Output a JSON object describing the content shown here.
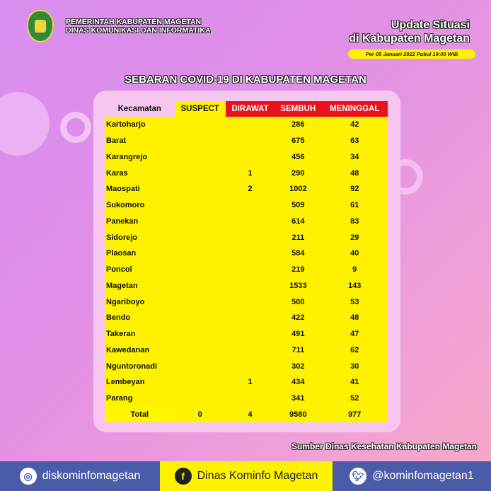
{
  "header": {
    "org_line1": "PEMERINTAH KABUPATEN MAGETAN",
    "org_line2": "DINAS KOMUNIKASI DAN INFORMATIKA",
    "update_line1": "Update Situasi",
    "update_line2": "di Kabupaten Magetan",
    "date": "Per 05 Januari 2022 Pukul 19:00 WIB"
  },
  "title": "SEBARAN COVID-19 DI KABUPATEN MAGETAN",
  "table": {
    "headers": [
      "Kecamatan",
      "SUSPECT",
      "DIRAWAT",
      "SEMBUH",
      "MENINGGAL"
    ],
    "rows": [
      [
        "Kartoharjo",
        "",
        "",
        "286",
        "42"
      ],
      [
        "Barat",
        "",
        "",
        "675",
        "63"
      ],
      [
        "Karangrejo",
        "",
        "",
        "456",
        "34"
      ],
      [
        "Karas",
        "",
        "1",
        "290",
        "48"
      ],
      [
        "Maospati",
        "",
        "2",
        "1002",
        "92"
      ],
      [
        "Sukomoro",
        "",
        "",
        "509",
        "61"
      ],
      [
        "Panekan",
        "",
        "",
        "614",
        "83"
      ],
      [
        "Sidorejo",
        "",
        "",
        "211",
        "29"
      ],
      [
        "Plaosan",
        "",
        "",
        "584",
        "40"
      ],
      [
        "Poncol",
        "",
        "",
        "219",
        "9"
      ],
      [
        "Magetan",
        "",
        "",
        "1533",
        "143"
      ],
      [
        "Ngariboyo",
        "",
        "",
        "500",
        "53"
      ],
      [
        "Bendo",
        "",
        "",
        "422",
        "48"
      ],
      [
        "Takeran",
        "",
        "",
        "491",
        "47"
      ],
      [
        "Kawedanan",
        "",
        "",
        "711",
        "62"
      ],
      [
        "Nguntoronadi",
        "",
        "",
        "302",
        "30"
      ],
      [
        "Lembeyan",
        "",
        "1",
        "434",
        "41"
      ],
      [
        "Parang",
        "",
        "",
        "341",
        "52"
      ]
    ],
    "total": [
      "Total",
      "0",
      "4",
      "9580",
      "977"
    ]
  },
  "source": "Sumber Dinas Kesehatan Kabupaten Magetan",
  "footer": {
    "instagram": "diskominfomagetan",
    "facebook": "Dinas Kominfo Magetan",
    "twitter": "@kominfomagetan1"
  },
  "colors": {
    "yellow": "#fff200",
    "red": "#e8111c",
    "footer_blue": "#4a5ca8"
  }
}
